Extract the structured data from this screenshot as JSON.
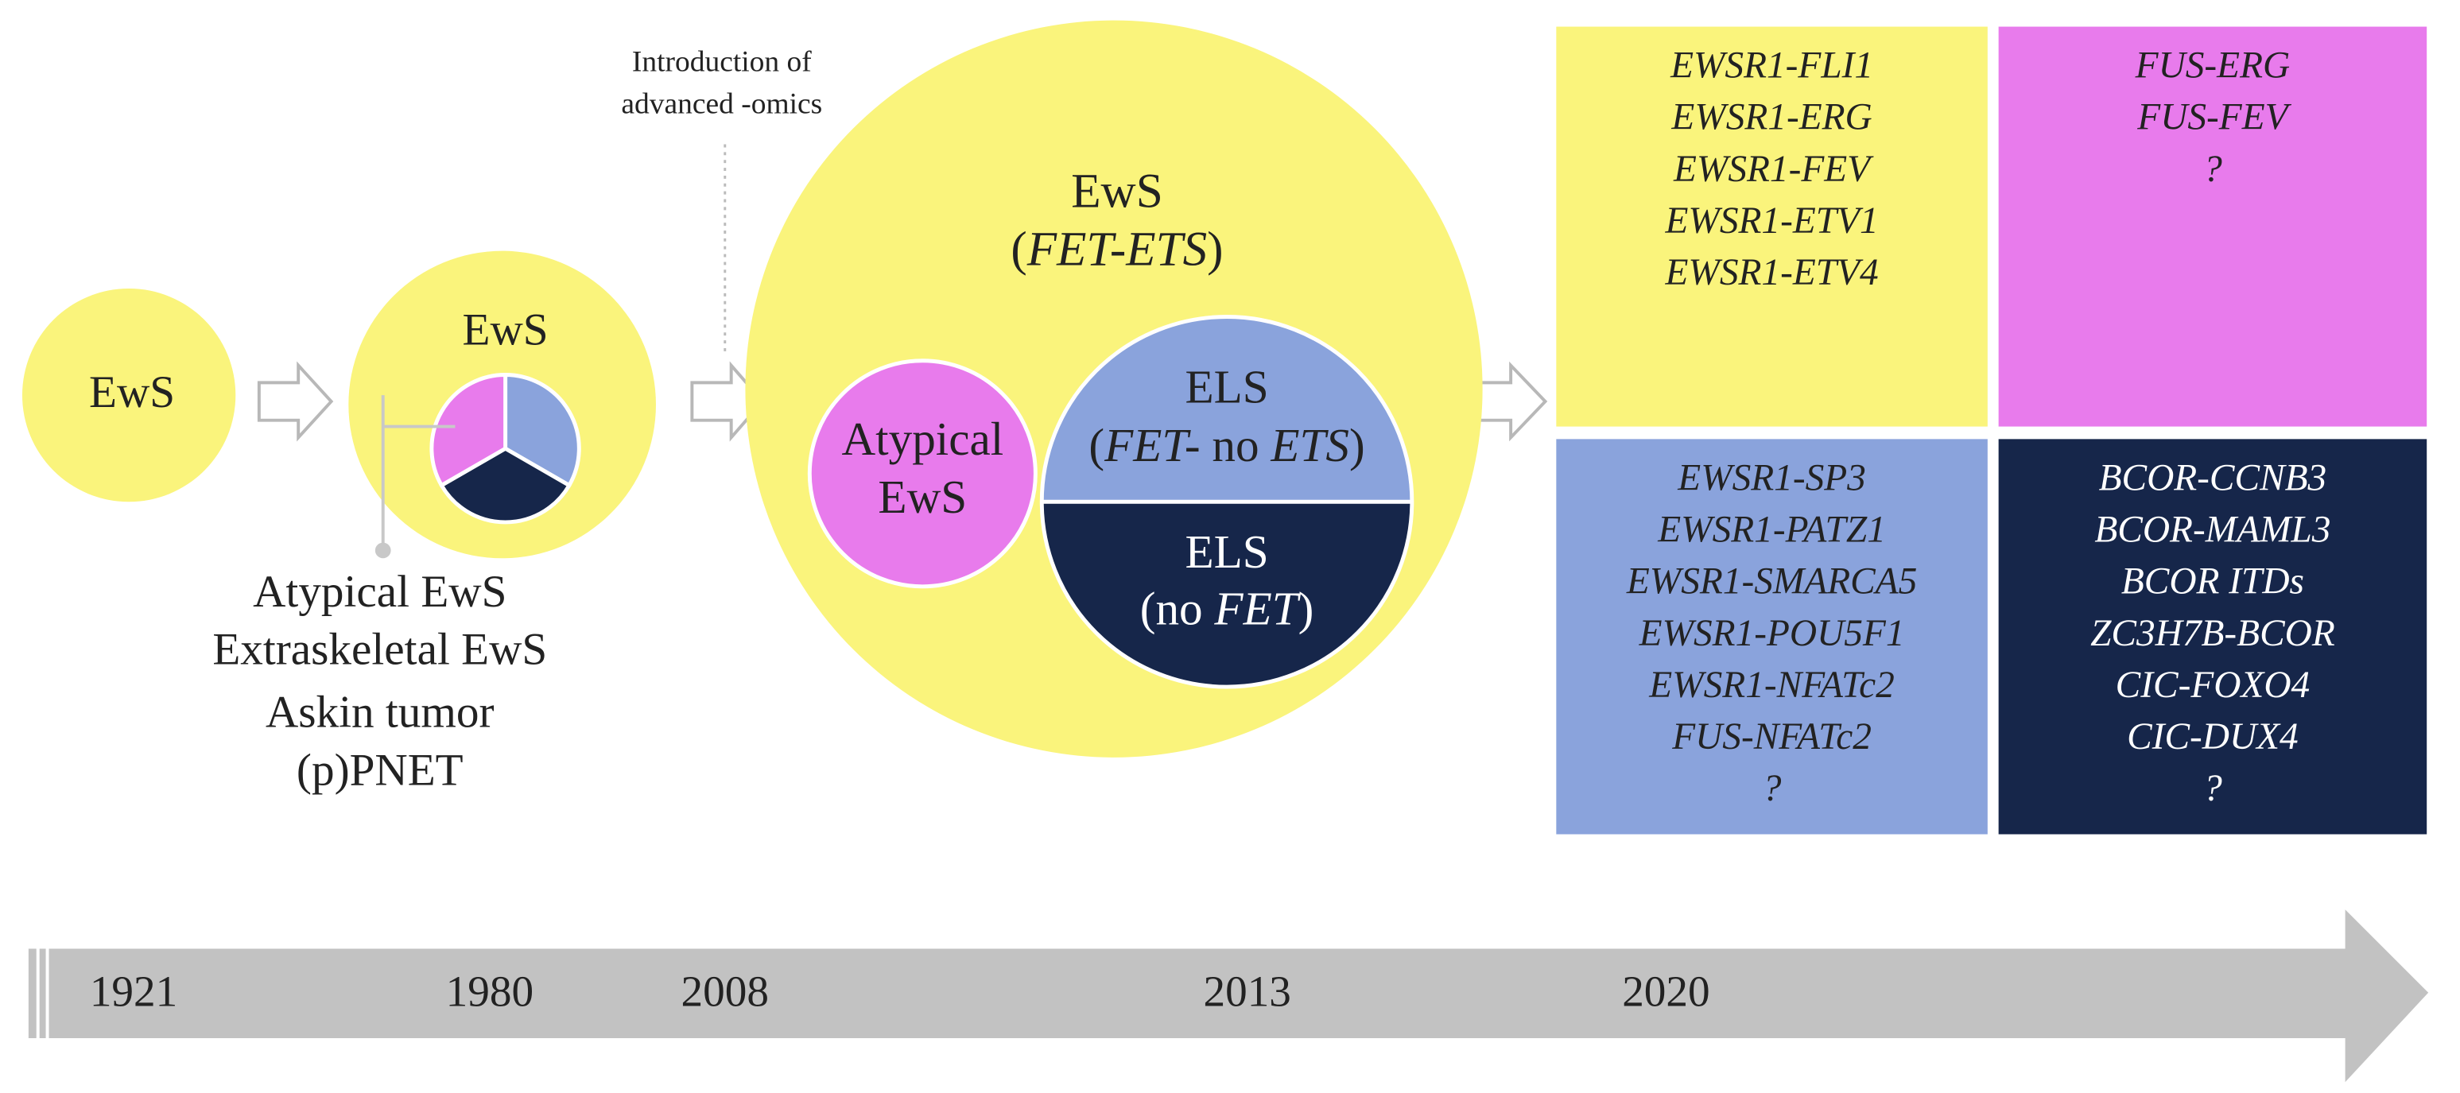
{
  "era_1921": {
    "label": "EwS"
  },
  "era_1980": {
    "label": "EwS",
    "subtypes": [
      "Atypical EwS",
      "Extraskeletal EwS",
      "Askin tumor",
      "(p)PNET"
    ]
  },
  "annotation": [
    "Introduction of",
    "advanced -omics"
  ],
  "era_2013": {
    "title": "EwS",
    "subtitle": [
      "(",
      "FET-ETS",
      ")"
    ],
    "atypical": [
      "Atypical",
      "EwS"
    ],
    "els_fet": {
      "label": "ELS",
      "detail": [
        "(",
        "FET-",
        " no ",
        "ETS",
        ")"
      ]
    },
    "els_no_fet": {
      "label": "ELS",
      "detail": [
        "(no ",
        "FET",
        ")"
      ]
    }
  },
  "boxes": [
    {
      "items": [
        "EWSR1-FLI1",
        "EWSR1-ERG",
        "EWSR1-FEV",
        "EWSR1-ETV1",
        "EWSR1-ETV4"
      ]
    },
    {
      "items": [
        "FUS-ERG",
        "FUS-FEV",
        "?"
      ]
    },
    {
      "items": [
        "EWSR1-SP3",
        "EWSR1-PATZ1",
        "EWSR1-SMARCA5",
        "EWSR1-POU5F1",
        "EWSR1-NFATc2",
        "FUS-NFATc2",
        "?"
      ]
    },
    {
      "items": [
        "BCOR-CCNB3",
        "BCOR-MAML3",
        "BCOR ITDs",
        "ZC3H7B-BCOR",
        "CIC-FOXO4",
        "CIC-DUX4",
        "?"
      ]
    }
  ],
  "timeline": [
    "1921",
    "1980",
    "2008",
    "2013",
    "2020"
  ]
}
